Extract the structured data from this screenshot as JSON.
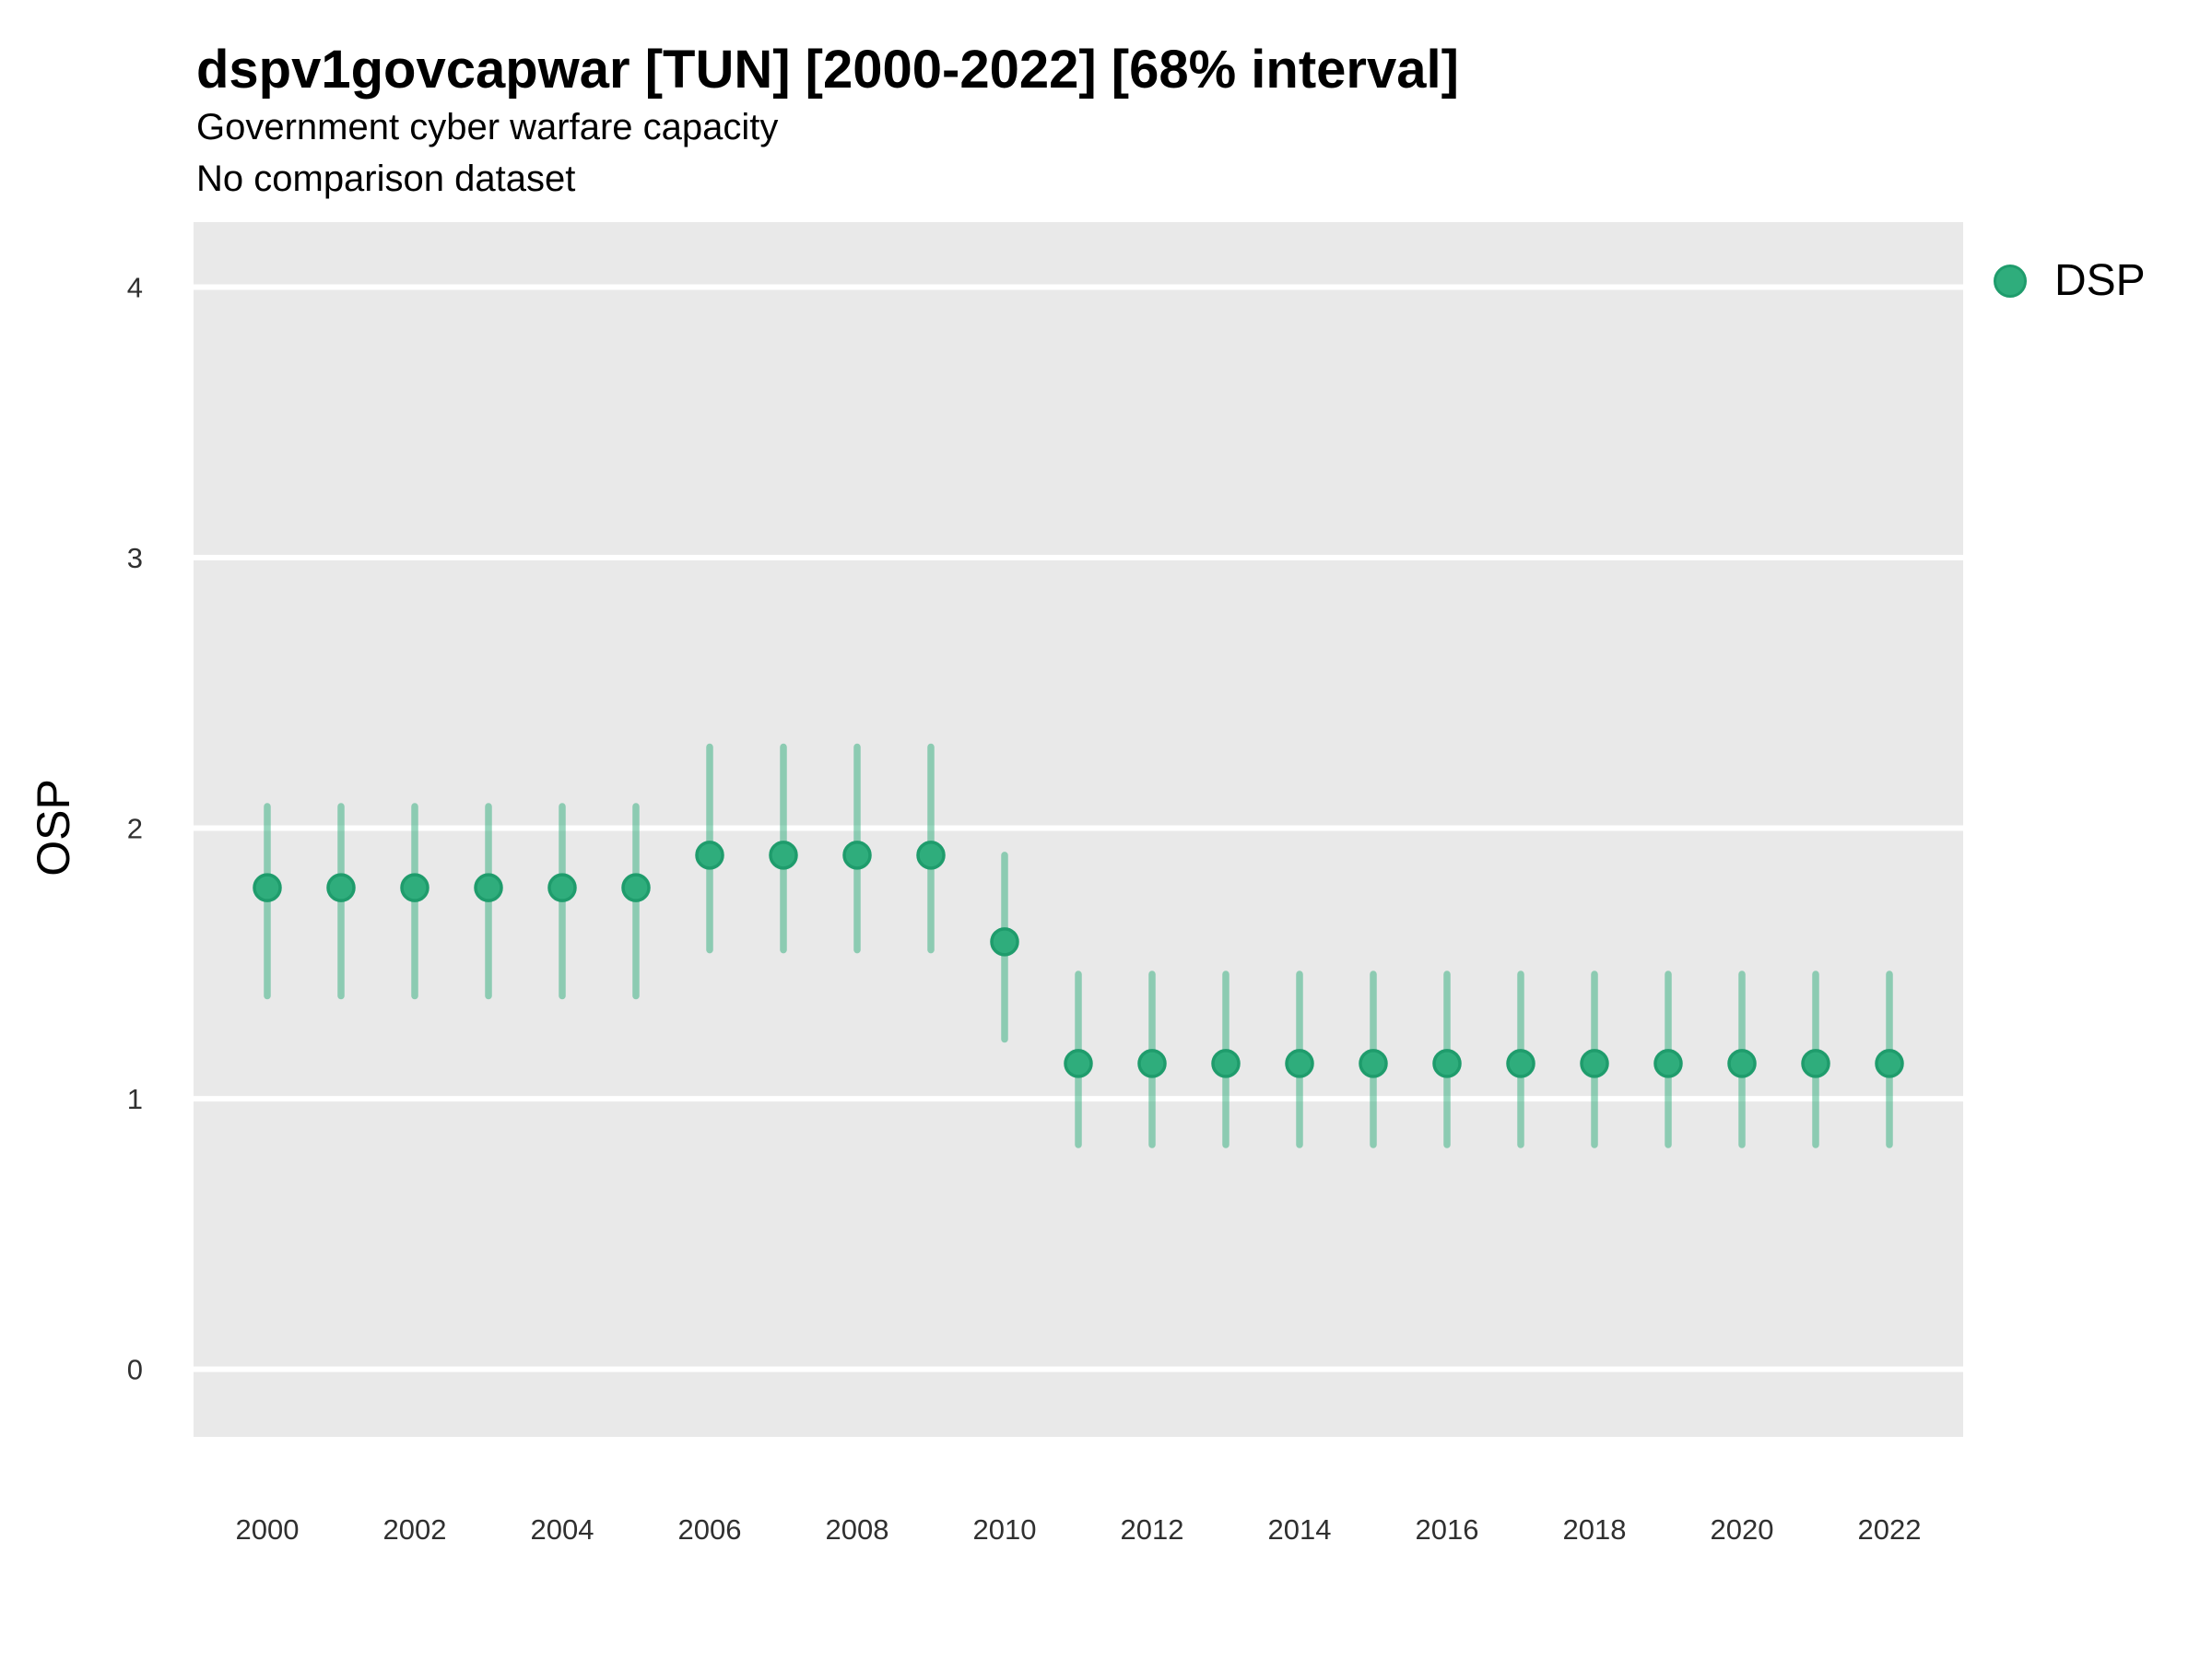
{
  "header": {
    "title": "dspv1govcapwar [TUN] [2000-2022] [68% interval]",
    "subtitle": "Government cyber warfare capacity",
    "note": "No comparison dataset"
  },
  "legend": {
    "label": "DSP"
  },
  "colors": {
    "point_fill": "#2fad7c",
    "point_stroke": "#1f9c6c",
    "interval_color": "#2fad7c",
    "interval_opacity": 0.5,
    "panel_bg": "#e9e9e9",
    "gridline": "#ffffff",
    "tick_text": "#303030"
  },
  "chart_data": {
    "type": "scatter",
    "title": "dspv1govcapwar [TUN] [2000-2022] [68% interval]",
    "subtitle": "Government cyber warfare capacity",
    "note": "No comparison dataset",
    "xlabel": "",
    "ylabel": "OSP",
    "legend_position": "right",
    "grid": "horizontal-major-white-on-gray",
    "interval_label": "68% interval",
    "x": [
      2000,
      2001,
      2002,
      2003,
      2004,
      2005,
      2006,
      2007,
      2008,
      2009,
      2010,
      2011,
      2012,
      2013,
      2014,
      2015,
      2016,
      2017,
      2018,
      2019,
      2020,
      2021,
      2022
    ],
    "series": [
      {
        "name": "DSP",
        "values": [
          1.78,
          1.78,
          1.78,
          1.78,
          1.78,
          1.78,
          1.9,
          1.9,
          1.9,
          1.9,
          1.58,
          1.13,
          1.13,
          1.13,
          1.13,
          1.13,
          1.13,
          1.13,
          1.13,
          1.13,
          1.13,
          1.13,
          1.13
        ],
        "lower": [
          1.38,
          1.38,
          1.38,
          1.38,
          1.38,
          1.38,
          1.55,
          1.55,
          1.55,
          1.55,
          1.22,
          0.83,
          0.83,
          0.83,
          0.83,
          0.83,
          0.83,
          0.83,
          0.83,
          0.83,
          0.83,
          0.83,
          0.83
        ],
        "upper": [
          2.08,
          2.08,
          2.08,
          2.08,
          2.08,
          2.08,
          2.3,
          2.3,
          2.3,
          2.3,
          1.9,
          1.46,
          1.46,
          1.46,
          1.46,
          1.46,
          1.46,
          1.46,
          1.46,
          1.46,
          1.46,
          1.46,
          1.46
        ]
      }
    ],
    "x_ticks": [
      2000,
      2002,
      2004,
      2006,
      2008,
      2010,
      2012,
      2014,
      2016,
      2018,
      2020,
      2022
    ],
    "y_ticks": [
      0,
      1,
      2,
      3,
      4
    ],
    "xlim": [
      1999,
      2023
    ],
    "ylim": [
      -0.25,
      4.24
    ]
  }
}
